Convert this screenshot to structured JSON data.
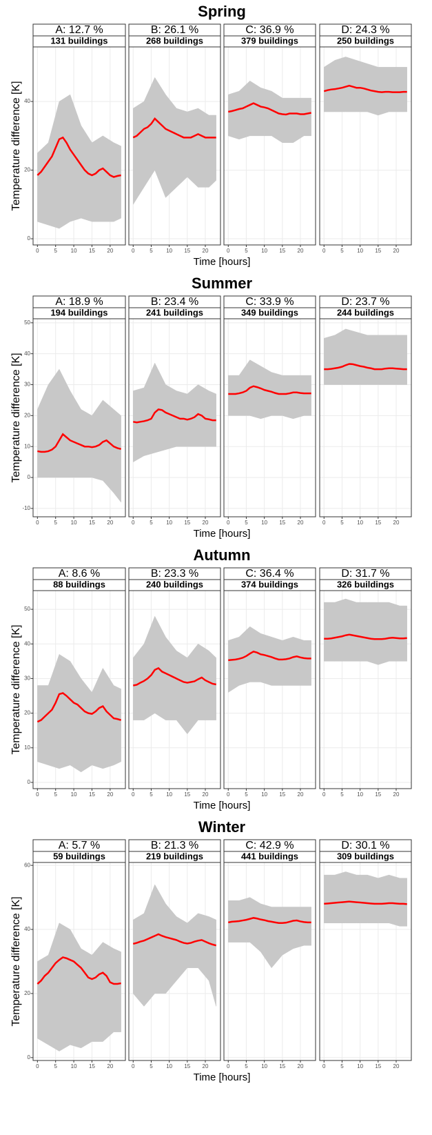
{
  "chart_data": [
    {
      "type": "line",
      "title": "Spring",
      "ylabel": "Temperature difference [K]",
      "xlabel": "Time [hours]",
      "x": [
        0,
        1,
        2,
        3,
        4,
        5,
        6,
        7,
        8,
        9,
        10,
        11,
        12,
        13,
        14,
        15,
        16,
        17,
        18,
        19,
        20,
        21,
        22,
        23
      ],
      "band_x": [
        0,
        3,
        6,
        9,
        12,
        15,
        18,
        21,
        23
      ],
      "xlim": [
        -1.2,
        24.2
      ],
      "xticks": [
        0,
        5,
        10,
        15,
        20
      ],
      "ylim": [
        -1.8,
        55.9
      ],
      "yticks": [
        0,
        20,
        40
      ],
      "grid": true,
      "mean_color": "#ff0000",
      "band_color": "#c8c8c8",
      "panels": [
        {
          "label": "A: 12.7 %",
          "count": "131 buildings",
          "mean": [
            18.5,
            19.5,
            21,
            22.5,
            24,
            26.5,
            29,
            29.5,
            28,
            26,
            24.5,
            23,
            21.5,
            20,
            19,
            18.5,
            19,
            20,
            20.5,
            19.5,
            18.5,
            18,
            18.3,
            18.5
          ],
          "low": [
            5,
            4,
            3,
            5,
            6,
            5,
            5,
            5,
            6
          ],
          "high": [
            25,
            28,
            40,
            42,
            33,
            28,
            30,
            28,
            27
          ]
        },
        {
          "label": "B: 26.1 %",
          "count": "268 buildings",
          "mean": [
            29.5,
            30,
            31,
            32,
            32.5,
            33.5,
            35,
            34,
            33,
            32,
            31.5,
            31,
            30.5,
            30,
            29.5,
            29.5,
            29.5,
            30,
            30.5,
            30,
            29.5,
            29.5,
            29.5,
            29.5
          ],
          "low": [
            10,
            15,
            20,
            12,
            15,
            18,
            15,
            15,
            17
          ],
          "high": [
            38,
            40,
            47,
            42,
            38,
            37,
            38,
            36,
            36
          ]
        },
        {
          "label": "C: 36.9 %",
          "count": "379 buildings",
          "mean": [
            37,
            37.2,
            37.5,
            37.8,
            38,
            38.5,
            39,
            39.5,
            39,
            38.5,
            38.3,
            38,
            37.5,
            37,
            36.5,
            36.3,
            36.2,
            36.5,
            36.5,
            36.5,
            36.3,
            36.3,
            36.5,
            36.7
          ],
          "low": [
            30,
            29,
            30,
            30,
            30,
            28,
            28,
            30,
            30
          ],
          "high": [
            42,
            43,
            46,
            44,
            43,
            41,
            41,
            41,
            41
          ]
        },
        {
          "label": "D: 24.3 %",
          "count": "250 buildings",
          "mean": [
            43,
            43.3,
            43.5,
            43.6,
            43.8,
            44,
            44.3,
            44.6,
            44.3,
            44,
            44,
            43.8,
            43.5,
            43.2,
            43,
            42.8,
            42.7,
            42.8,
            42.8,
            42.7,
            42.7,
            42.7,
            42.8,
            42.8
          ],
          "low": [
            37,
            37,
            37,
            37,
            37,
            36,
            37,
            37,
            37
          ],
          "high": [
            50,
            52,
            53,
            52,
            51,
            50,
            50,
            50,
            50
          ]
        }
      ]
    },
    {
      "type": "line",
      "title": "Summer",
      "ylabel": "Temperature difference [K]",
      "xlabel": "Time [hours]",
      "x": [
        0,
        1,
        2,
        3,
        4,
        5,
        6,
        7,
        8,
        9,
        10,
        11,
        12,
        13,
        14,
        15,
        16,
        17,
        18,
        19,
        20,
        21,
        22,
        23
      ],
      "band_x": [
        0,
        3,
        6,
        9,
        12,
        15,
        18,
        21,
        23
      ],
      "xlim": [
        -1.2,
        24.2
      ],
      "xticks": [
        0,
        5,
        10,
        15,
        20
      ],
      "ylim": [
        -12.7,
        51.3
      ],
      "yticks": [
        -10,
        0,
        10,
        20,
        30,
        40,
        50
      ],
      "grid": true,
      "mean_color": "#ff0000",
      "band_color": "#c8c8c8",
      "panels": [
        {
          "label": "A: 18.9 %",
          "count": "194 buildings",
          "mean": [
            8.5,
            8.3,
            8.3,
            8.5,
            9,
            10,
            12,
            14,
            13,
            12,
            11.5,
            11,
            10.5,
            10,
            10,
            9.8,
            10,
            10.5,
            11.5,
            12,
            11,
            10,
            9.5,
            9.2
          ],
          "low": [
            0,
            0,
            0,
            0,
            0,
            0,
            -1,
            -5,
            -8
          ],
          "high": [
            22,
            30,
            35,
            28,
            22,
            20,
            25,
            22,
            20
          ]
        },
        {
          "label": "B: 23.4 %",
          "count": "241 buildings",
          "mean": [
            18,
            17.8,
            18,
            18.2,
            18.5,
            19,
            21,
            22,
            21.8,
            21,
            20.5,
            20,
            19.5,
            19,
            19,
            18.7,
            19,
            19.5,
            20.5,
            20,
            19,
            18.8,
            18.5,
            18.5
          ],
          "low": [
            5,
            7,
            8,
            9,
            10,
            10,
            10,
            10,
            10
          ],
          "high": [
            28,
            29,
            37,
            30,
            28,
            27,
            30,
            28,
            27
          ]
        },
        {
          "label": "C: 33.9 %",
          "count": "349 buildings",
          "mean": [
            27,
            27,
            27,
            27.2,
            27.5,
            28,
            29,
            29.5,
            29.2,
            28.8,
            28.3,
            28,
            27.7,
            27.3,
            27,
            27,
            27,
            27.2,
            27.5,
            27.5,
            27.3,
            27.2,
            27.2,
            27.2
          ],
          "low": [
            20,
            20,
            20,
            19,
            20,
            20,
            19,
            20,
            20
          ],
          "high": [
            33,
            33,
            38,
            36,
            34,
            33,
            33,
            33,
            33
          ]
        },
        {
          "label": "D: 23.7 %",
          "count": "244 buildings",
          "mean": [
            35,
            35,
            35.1,
            35.3,
            35.5,
            35.8,
            36.3,
            36.7,
            36.6,
            36.3,
            36,
            35.8,
            35.5,
            35.3,
            35,
            35,
            35,
            35.2,
            35.3,
            35.3,
            35.2,
            35.1,
            35,
            35
          ],
          "low": [
            30,
            30,
            30,
            30,
            30,
            30,
            30,
            30,
            30
          ],
          "high": [
            45,
            46,
            48,
            47,
            46,
            46,
            46,
            46,
            46
          ]
        }
      ]
    },
    {
      "type": "line",
      "title": "Autumn",
      "ylabel": "Temperature difference [K]",
      "xlabel": "Time [hours]",
      "x": [
        0,
        1,
        2,
        3,
        4,
        5,
        6,
        7,
        8,
        9,
        10,
        11,
        12,
        13,
        14,
        15,
        16,
        17,
        18,
        19,
        20,
        21,
        22,
        23
      ],
      "band_x": [
        0,
        3,
        6,
        9,
        12,
        15,
        18,
        21,
        23
      ],
      "xlim": [
        -1.2,
        24.2
      ],
      "xticks": [
        0,
        5,
        10,
        15,
        20
      ],
      "ylim": [
        -1.8,
        55.4
      ],
      "yticks": [
        0,
        10,
        20,
        30,
        40,
        50
      ],
      "grid": true,
      "mean_color": "#ff0000",
      "band_color": "#c8c8c8",
      "panels": [
        {
          "label": "A: 8.6 %",
          "count": "88 buildings",
          "mean": [
            17.5,
            18,
            19,
            20,
            21,
            23,
            25.5,
            25.8,
            25,
            24,
            23,
            22.5,
            21.5,
            20.5,
            20,
            19.8,
            20.5,
            21.5,
            22,
            20.5,
            19.5,
            18.5,
            18.3,
            18
          ],
          "low": [
            6,
            5,
            4,
            5,
            3,
            5,
            4,
            5,
            6
          ],
          "high": [
            28,
            28,
            37,
            35,
            30,
            26,
            33,
            28,
            27
          ]
        },
        {
          "label": "B: 23.3 %",
          "count": "240 buildings",
          "mean": [
            28,
            28.2,
            28.8,
            29.3,
            30,
            31,
            32.5,
            33,
            32,
            31.5,
            31,
            30.5,
            30,
            29.5,
            29,
            28.8,
            29,
            29.2,
            29.8,
            30.3,
            29.5,
            29,
            28.5,
            28.3
          ],
          "low": [
            18,
            18,
            20,
            18,
            18,
            14,
            18,
            18,
            18
          ],
          "high": [
            36,
            40,
            48,
            42,
            38,
            36,
            40,
            38,
            36
          ]
        },
        {
          "label": "C: 36.4 %",
          "count": "374 buildings",
          "mean": [
            35.3,
            35.4,
            35.5,
            35.7,
            36,
            36.5,
            37.2,
            37.8,
            37.5,
            37,
            36.8,
            36.5,
            36.2,
            35.8,
            35.5,
            35.5,
            35.6,
            35.8,
            36.2,
            36.4,
            36.1,
            35.9,
            35.8,
            35.8
          ],
          "low": [
            26,
            28,
            29,
            29,
            28,
            28,
            28,
            28,
            28
          ],
          "high": [
            41,
            42,
            45,
            43,
            42,
            41,
            42,
            41,
            41
          ]
        },
        {
          "label": "D: 31.7 %",
          "count": "326 buildings",
          "mean": [
            41.5,
            41.5,
            41.6,
            41.8,
            42,
            42.2,
            42.5,
            42.7,
            42.5,
            42.3,
            42.1,
            41.9,
            41.7,
            41.5,
            41.4,
            41.4,
            41.4,
            41.5,
            41.7,
            41.8,
            41.7,
            41.6,
            41.6,
            41.7
          ],
          "low": [
            35,
            35,
            35,
            35,
            35,
            34,
            35,
            35,
            35
          ],
          "high": [
            52,
            52,
            53,
            52,
            52,
            52,
            52,
            51,
            51
          ]
        }
      ]
    },
    {
      "type": "line",
      "title": "Winter",
      "ylabel": "Temperature difference [K]",
      "xlabel": "Time [hours]",
      "x": [
        0,
        1,
        2,
        3,
        4,
        5,
        6,
        7,
        8,
        9,
        10,
        11,
        12,
        13,
        14,
        15,
        16,
        17,
        18,
        19,
        20,
        21,
        22,
        23
      ],
      "band_x": [
        0,
        3,
        6,
        9,
        12,
        15,
        18,
        21,
        23
      ],
      "xlim": [
        -1.2,
        24.2
      ],
      "xticks": [
        0,
        5,
        10,
        15,
        20
      ],
      "ylim": [
        -0.9,
        60.9
      ],
      "yticks": [
        0,
        20,
        40,
        60
      ],
      "grid": true,
      "mean_color": "#ff0000",
      "band_color": "#c8c8c8",
      "panels": [
        {
          "label": "A: 5.7 %",
          "count": "59 buildings",
          "mean": [
            23,
            24,
            25.5,
            26.5,
            28,
            29.5,
            30.5,
            31.3,
            31,
            30.5,
            30,
            29,
            28,
            26.5,
            25,
            24.5,
            25,
            26,
            26.5,
            25.5,
            23.5,
            23,
            23,
            23.2
          ],
          "low": [
            6,
            4,
            2,
            4,
            3,
            5,
            5,
            8,
            8
          ],
          "high": [
            30,
            32,
            42,
            40,
            34,
            32,
            36,
            34,
            33
          ]
        },
        {
          "label": "B: 21.3 %",
          "count": "219 buildings",
          "mean": [
            35.5,
            35.8,
            36.2,
            36.5,
            37,
            37.5,
            38,
            38.5,
            38,
            37.6,
            37.3,
            37,
            36.7,
            36.2,
            35.8,
            35.6,
            35.8,
            36.2,
            36.5,
            36.7,
            36.2,
            35.7,
            35.3,
            35
          ],
          "low": [
            20,
            16,
            20,
            20,
            24,
            28,
            28,
            24,
            16
          ],
          "high": [
            43,
            45,
            54,
            48,
            44,
            42,
            45,
            44,
            43
          ]
        },
        {
          "label": "C: 42.9 %",
          "count": "441 buildings",
          "mean": [
            42.2,
            42.4,
            42.5,
            42.6,
            42.8,
            43,
            43.3,
            43.6,
            43.4,
            43.1,
            42.9,
            42.6,
            42.4,
            42.2,
            42,
            42,
            42.1,
            42.4,
            42.7,
            42.8,
            42.5,
            42.3,
            42.2,
            42.2
          ],
          "low": [
            36,
            36,
            36,
            33,
            28,
            32,
            34,
            35,
            35
          ],
          "high": [
            49,
            49,
            50,
            48,
            47,
            47,
            47,
            47,
            47
          ]
        },
        {
          "label": "D: 30.1 %",
          "count": "309 buildings",
          "mean": [
            48,
            48.1,
            48.2,
            48.3,
            48.4,
            48.5,
            48.6,
            48.7,
            48.6,
            48.5,
            48.4,
            48.3,
            48.2,
            48.1,
            48,
            48,
            48,
            48.1,
            48.2,
            48.2,
            48.1,
            48,
            48,
            47.9
          ],
          "low": [
            42,
            42,
            42,
            42,
            42,
            42,
            42,
            41,
            41
          ],
          "high": [
            57,
            57,
            58,
            57,
            57,
            56,
            57,
            56,
            56
          ]
        }
      ]
    }
  ]
}
